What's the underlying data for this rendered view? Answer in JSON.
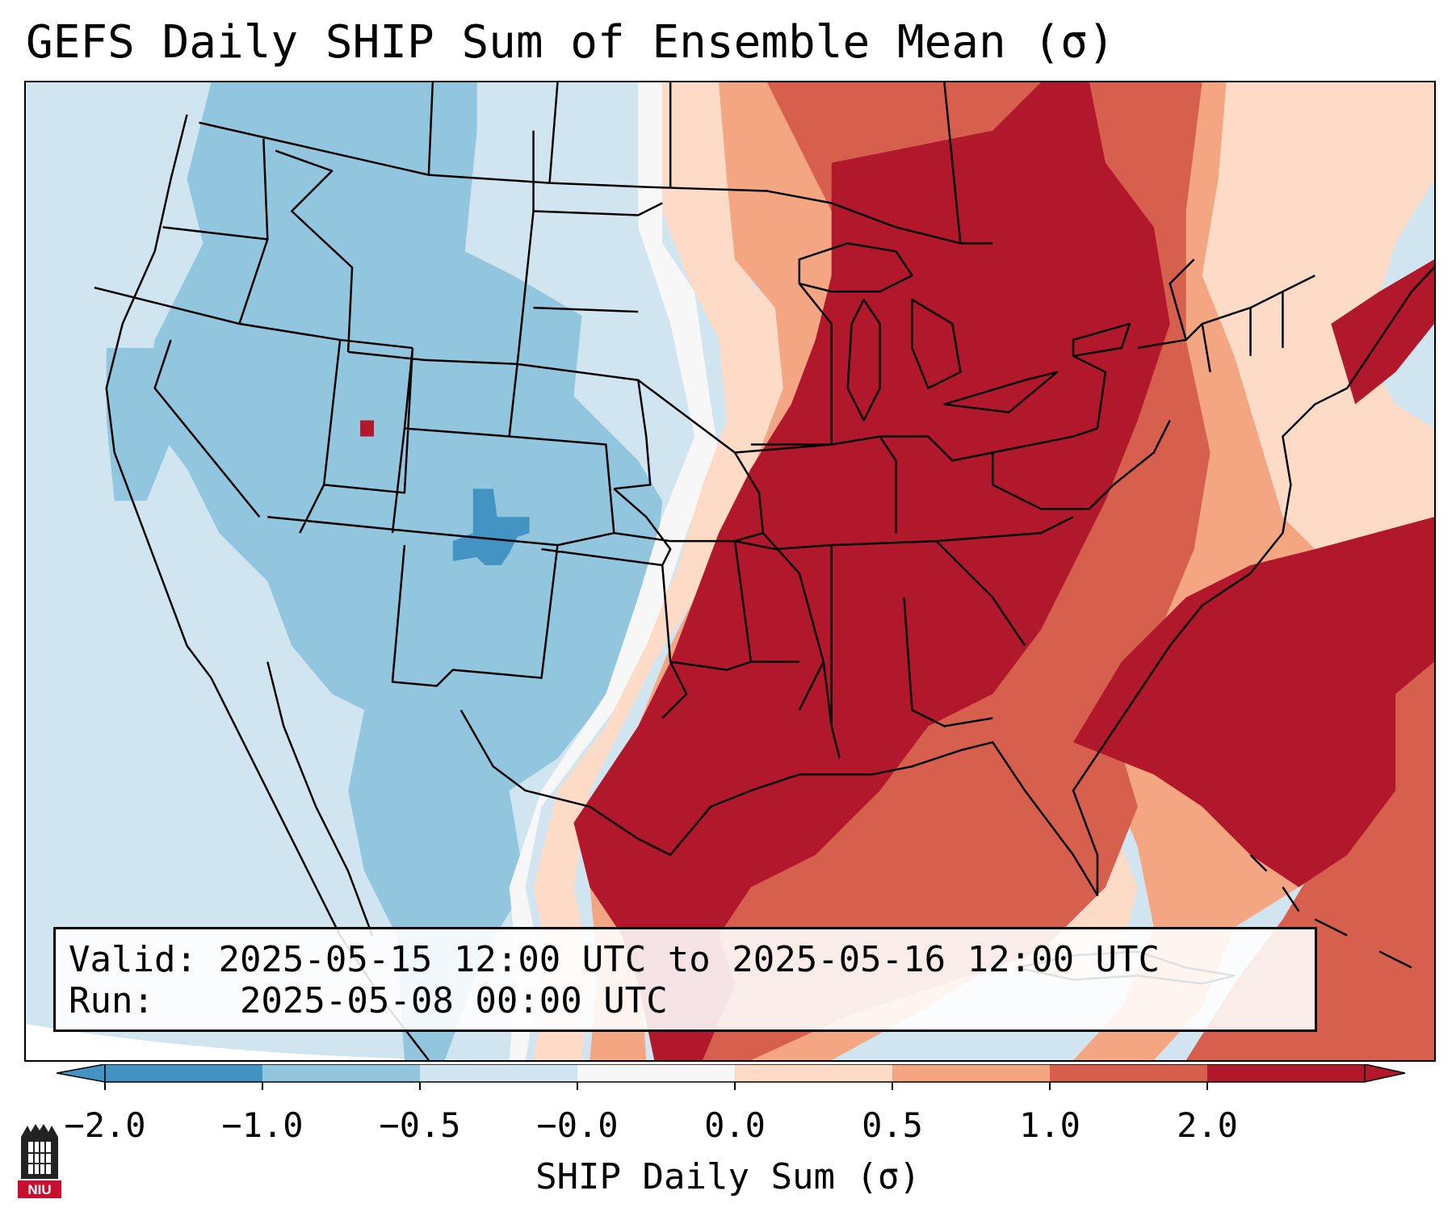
{
  "title": "GEFS Daily SHIP Sum of Ensemble Mean (σ)",
  "info": {
    "valid_label": "Valid:",
    "valid_value": "2025-05-15 12:00 UTC to 2025-05-16 12:00 UTC",
    "run_label": "Run:",
    "run_value": "2025-05-08 00:00 UTC"
  },
  "colorbar": {
    "label": "SHIP Daily Sum (σ)",
    "ticks": [
      "−2.0",
      "−1.0",
      "−0.5",
      "−0.0",
      "0.0",
      "0.5",
      "1.0",
      "2.0"
    ],
    "colors": [
      "#4393c3",
      "#92c5de",
      "#d1e5f0",
      "#f7f7f7",
      "#fddbc7",
      "#f4a582",
      "#d6604d",
      "#b2182b"
    ],
    "extend": "both"
  },
  "logo": {
    "text": "NIU",
    "icon": "niu-logo-icon"
  }
}
